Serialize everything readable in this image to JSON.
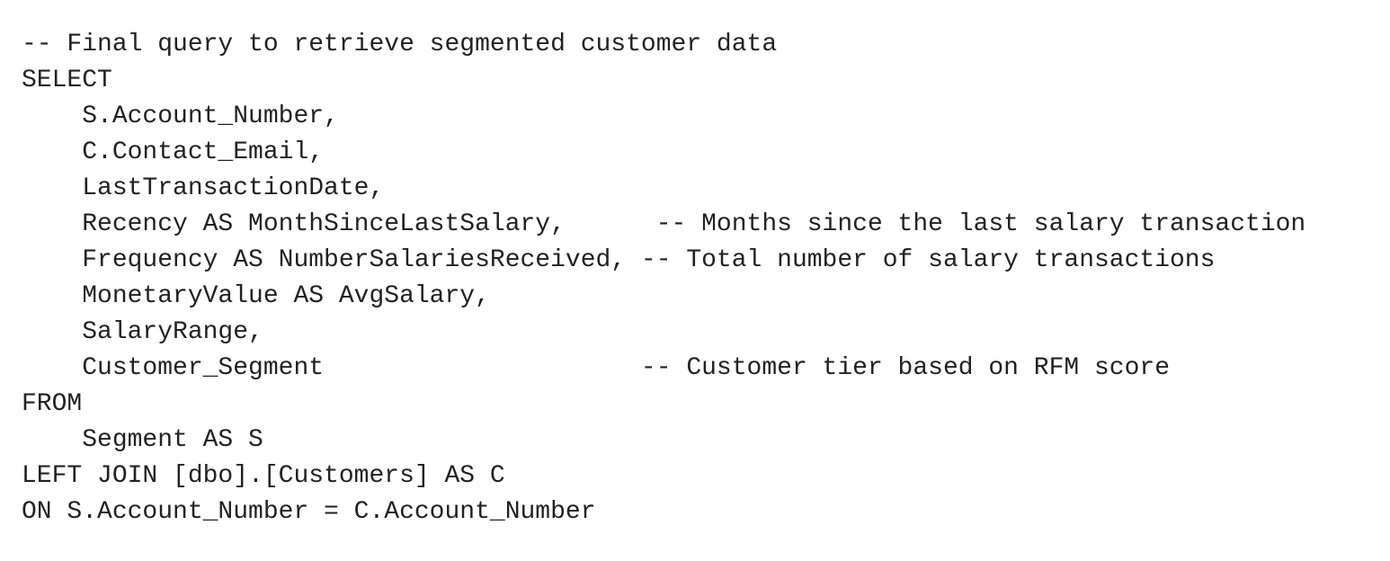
{
  "code": {
    "language": "sql",
    "lines": [
      "-- Final query to retrieve segmented customer data",
      "SELECT",
      "    S.Account_Number,",
      "    C.Contact_Email,",
      "    LastTransactionDate,",
      "    Recency AS MonthSinceLastSalary,      -- Months since the last salary transaction",
      "    Frequency AS NumberSalariesReceived, -- Total number of salary transactions",
      "    MonetaryValue AS AvgSalary,",
      "    SalaryRange,",
      "    Customer_Segment                     -- Customer tier based on RFM score",
      "FROM",
      "    Segment AS S",
      "LEFT JOIN [dbo].[Customers] AS C",
      "ON S.Account_Number = C.Account_Number"
    ]
  }
}
